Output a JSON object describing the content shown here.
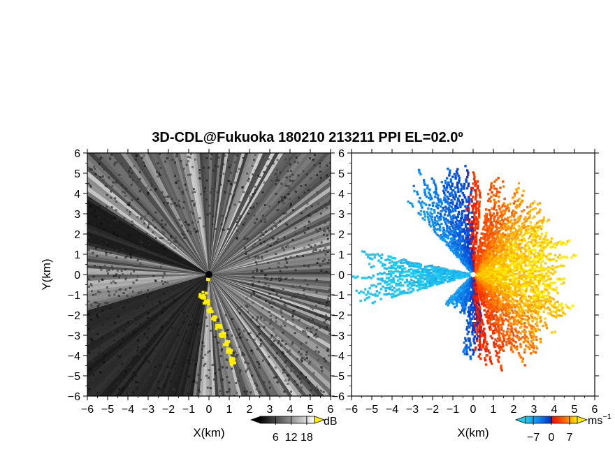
{
  "title": "3D-CDL@Fukuoka 180210 213211 PPI EL=02.0º",
  "colors": {
    "background": "#ffffff",
    "snr_low": "#000000",
    "snr_high": "#ffffff",
    "snr_flag": "#ffee00",
    "vel_negative_far": "#22ccee",
    "vel_negative_near": "#0044ee",
    "vel_positive_near": "#ee2200",
    "vel_positive_far": "#ffee00"
  },
  "chart_data": [
    {
      "type": "heatmap",
      "panel": "snr",
      "description_of_field": "PPI scan, SNR in dB",
      "xlabel": "X(km)",
      "ylabel": "Y(km)",
      "xlim": [
        -6,
        6
      ],
      "ylim": [
        -6,
        6
      ],
      "xticks": [
        "−6",
        "−5",
        "−4",
        "−3",
        "−2",
        "−1",
        "0",
        "1",
        "2",
        "3",
        "4",
        "5",
        "6"
      ],
      "yticks": [
        "6",
        "5",
        "4",
        "3",
        "2",
        "1",
        "0",
        "−1",
        "−2",
        "−3",
        "−4",
        "−5",
        "−6"
      ],
      "colorbar": {
        "label": "dB",
        "ticks": [
          "6",
          "12",
          "18"
        ],
        "range": [
          0,
          21
        ]
      }
    },
    {
      "type": "heatmap",
      "panel": "velocity",
      "xlabel": "X(km)",
      "xlim": [
        -6,
        6
      ],
      "ylim": [
        -6,
        6
      ],
      "xticks": [
        "−6",
        "−5",
        "−4",
        "−3",
        "−2",
        "−1",
        "0",
        "1",
        "2",
        "3",
        "4",
        "5",
        "6"
      ],
      "yticks": [
        "6",
        "5",
        "4",
        "3",
        "2",
        "1",
        "0",
        "−1",
        "−2",
        "−3",
        "−4",
        "−5",
        "−6"
      ],
      "colorbar": {
        "label": "ms",
        "label_superscript": "−1",
        "ticks": [
          "−7",
          "0",
          "7"
        ],
        "range": [
          -10,
          10
        ]
      }
    }
  ]
}
